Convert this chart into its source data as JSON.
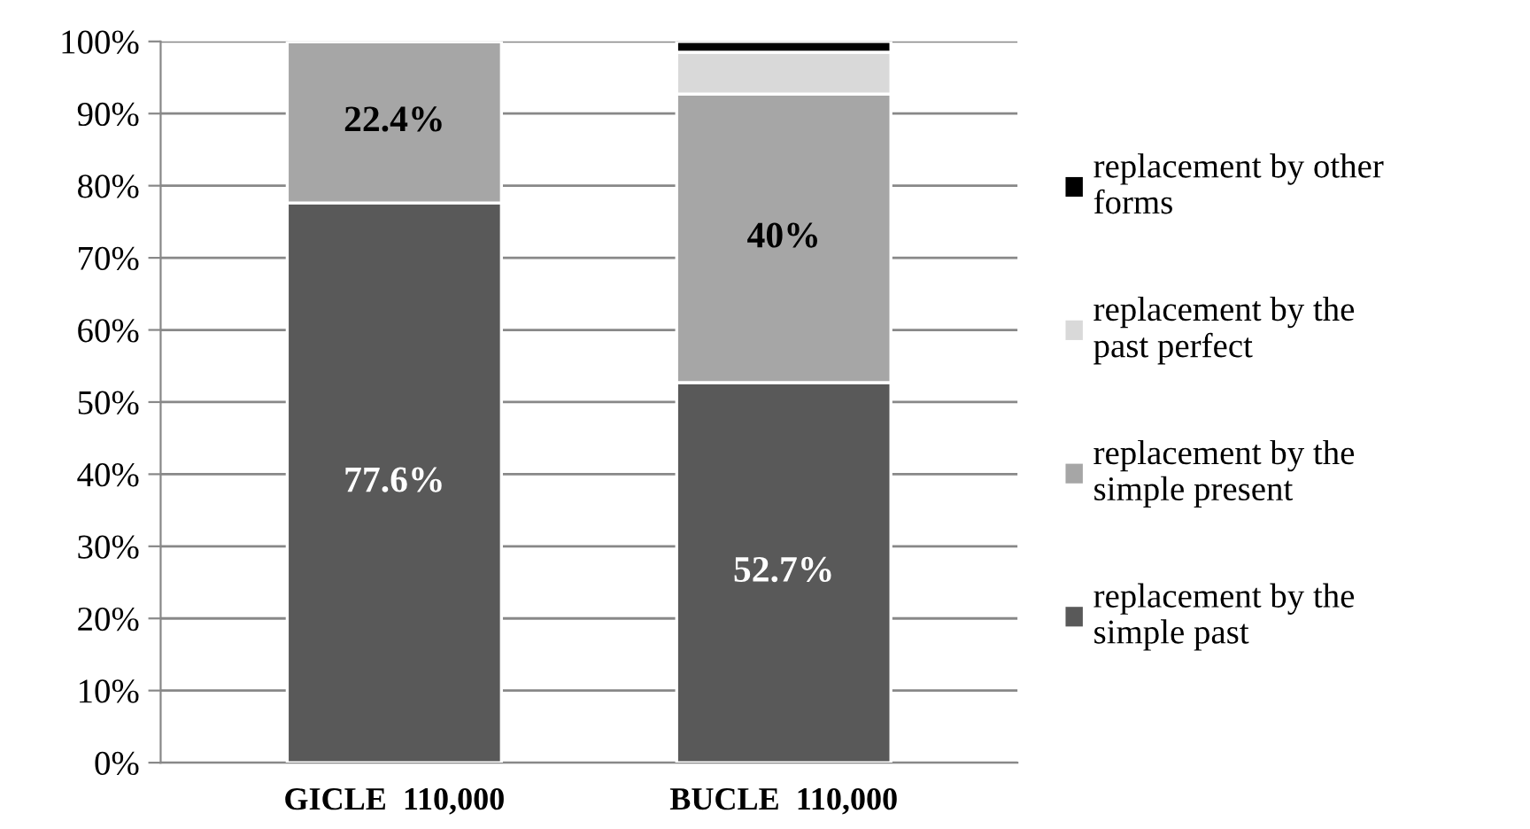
{
  "chart_data": {
    "type": "bar",
    "stacked": true,
    "categories": [
      "GICLE  110,000",
      "BUCLE  110,000"
    ],
    "series": [
      {
        "name": "replacement by the\nsimple past",
        "color": "#595959",
        "values": [
          77.6,
          52.7
        ],
        "value_labels": [
          "77.6%",
          "52.7%"
        ]
      },
      {
        "name": "replacement by the\nsimple present",
        "color": "#a6a6a6",
        "values": [
          22.4,
          40
        ],
        "value_labels": [
          "22.4%",
          "40%"
        ]
      },
      {
        "name": "replacement by the\npast perfect",
        "color": "#d9d9d9",
        "values": [
          null,
          5.8
        ],
        "value_labels": [
          null,
          null
        ]
      },
      {
        "name": "replacement by other\nforms",
        "color": "#000000",
        "values": [
          null,
          1.5
        ],
        "value_labels": [
          null,
          null
        ]
      }
    ],
    "ylim": [
      0,
      100
    ],
    "yticks": [
      {
        "value": 0,
        "label": "0%"
      },
      {
        "value": 10,
        "label": "10%"
      },
      {
        "value": 20,
        "label": "20%"
      },
      {
        "value": 30,
        "label": "30%"
      },
      {
        "value": 40,
        "label": "40%"
      },
      {
        "value": 50,
        "label": "50%"
      },
      {
        "value": 60,
        "label": "60%"
      },
      {
        "value": 70,
        "label": "70%"
      },
      {
        "value": 80,
        "label": "80%"
      },
      {
        "value": 90,
        "label": "90%"
      },
      {
        "value": 100,
        "label": "100%"
      }
    ],
    "grid": "y",
    "legend": "right"
  }
}
